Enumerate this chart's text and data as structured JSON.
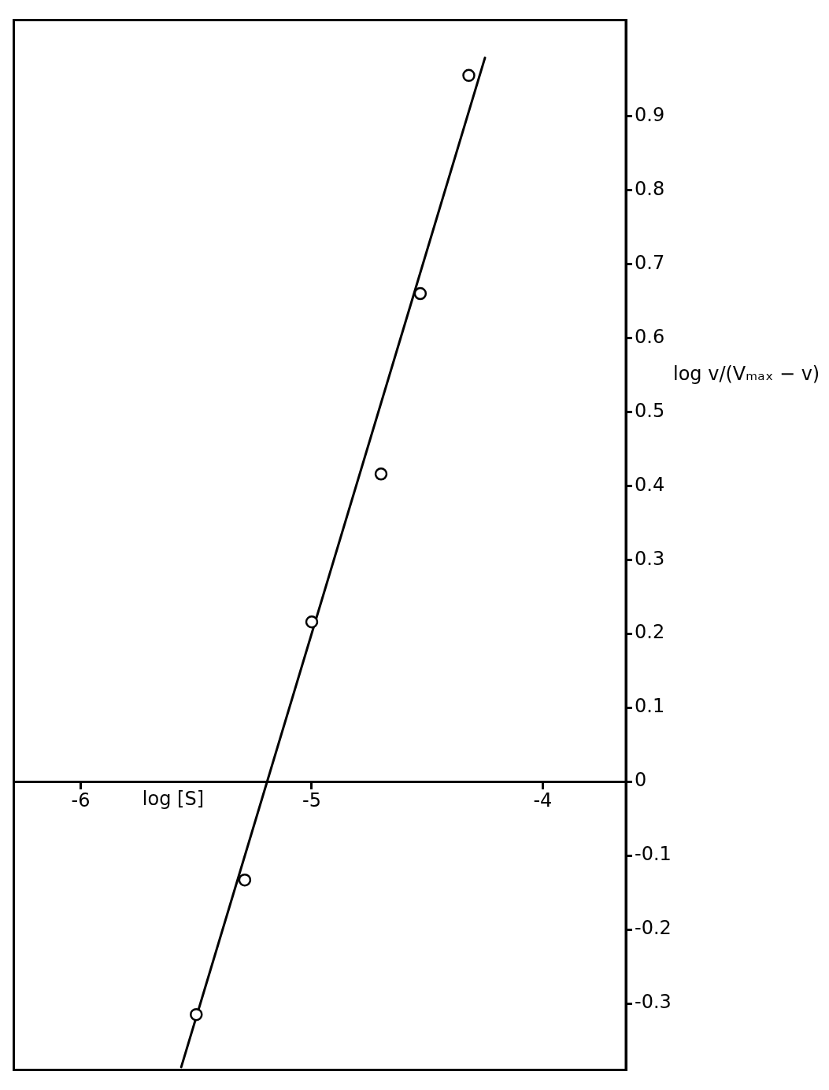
{
  "chart_data": {
    "type": "scatter",
    "xlabel": "log [S]",
    "ylabel": "log v/(Vₘₐₓ − v)",
    "xlim": [
      -6.29,
      -3.64
    ],
    "xticks": [
      -6,
      -5,
      -4
    ],
    "ylim": [
      -0.39,
      1.03
    ],
    "yticks": [
      {
        "value": -0.3,
        "label": "-0.3"
      },
      {
        "value": -0.2,
        "label": "-0.2"
      },
      {
        "value": -0.1,
        "label": "-0.1"
      },
      0,
      0.1,
      0.2,
      0.3,
      0.4,
      0.5,
      0.6,
      0.7,
      0.8,
      0.9
    ],
    "grid": false,
    "legend": false,
    "series": [
      {
        "type": "scatter",
        "color": "#000000",
        "marker": "circle",
        "x": [
          -5.5,
          -5.29,
          -5.0,
          -4.7,
          -4.53,
          -4.32
        ],
        "values": [
          -0.315,
          -0.133,
          0.216,
          0.416,
          0.66,
          0.955
        ]
      },
      {
        "type": "line",
        "color": "#000000",
        "marker": "none",
        "line_style": "solid",
        "x": [
          -5.565,
          -4.25
        ],
        "values": [
          -0.386,
          0.979
        ]
      }
    ]
  }
}
